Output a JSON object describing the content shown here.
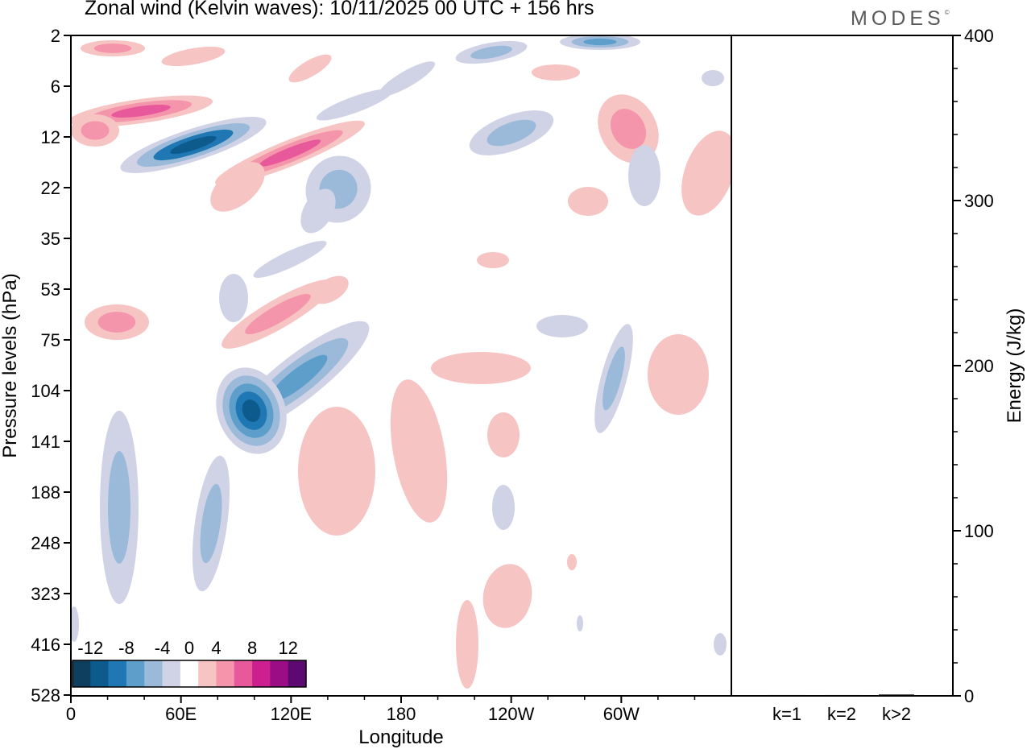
{
  "title": "Zonal wind (Kelvin waves):  10/11/2025  00 UTC  + 156 hrs",
  "brand": "MODES",
  "brand_mark": "©",
  "colors": {
    "neg": [
      "#0e3f5e",
      "#0d5b8c",
      "#1f78b4",
      "#5d9ecb",
      "#9bbad9",
      "#d0d3e6"
    ],
    "pos": [
      "#f6c4c2",
      "#f595ab",
      "#e8599b",
      "#cd1f8f",
      "#9b0d85",
      "#5c0971"
    ]
  },
  "chart_data": [
    {
      "type": "heatmap",
      "title": "Zonal wind (Kelvin waves)",
      "xlabel": "Longitude",
      "ylabel": "Pressure levels (hPa)",
      "x_ticks": [
        "0",
        "60E",
        "120E",
        "180",
        "120W",
        "60W"
      ],
      "x_values_deg": [
        0,
        60,
        120,
        180,
        240,
        300
      ],
      "xlim": [
        0,
        360
      ],
      "y_ticks": [
        "2",
        "6",
        "12",
        "22",
        "35",
        "53",
        "75",
        "104",
        "141",
        "188",
        "248",
        "323",
        "416",
        "528"
      ],
      "colorbar": {
        "labels": [
          "-12",
          "-8",
          "-4",
          "0",
          "4",
          "8",
          "12"
        ],
        "levels": [
          -14,
          -12,
          -10,
          -8,
          -6,
          -4,
          -2,
          2,
          4,
          6,
          8,
          10,
          12,
          14
        ]
      }
    },
    {
      "type": "bar",
      "ylabel": "Energy (J/kg)",
      "categories": [
        "k=1",
        "k=2",
        "k>2"
      ],
      "values": [
        0.5,
        0.5,
        0.8
      ],
      "ylim": [
        0,
        400
      ],
      "y_ticks": [
        "0",
        "100",
        "200",
        "300",
        "400"
      ]
    }
  ]
}
